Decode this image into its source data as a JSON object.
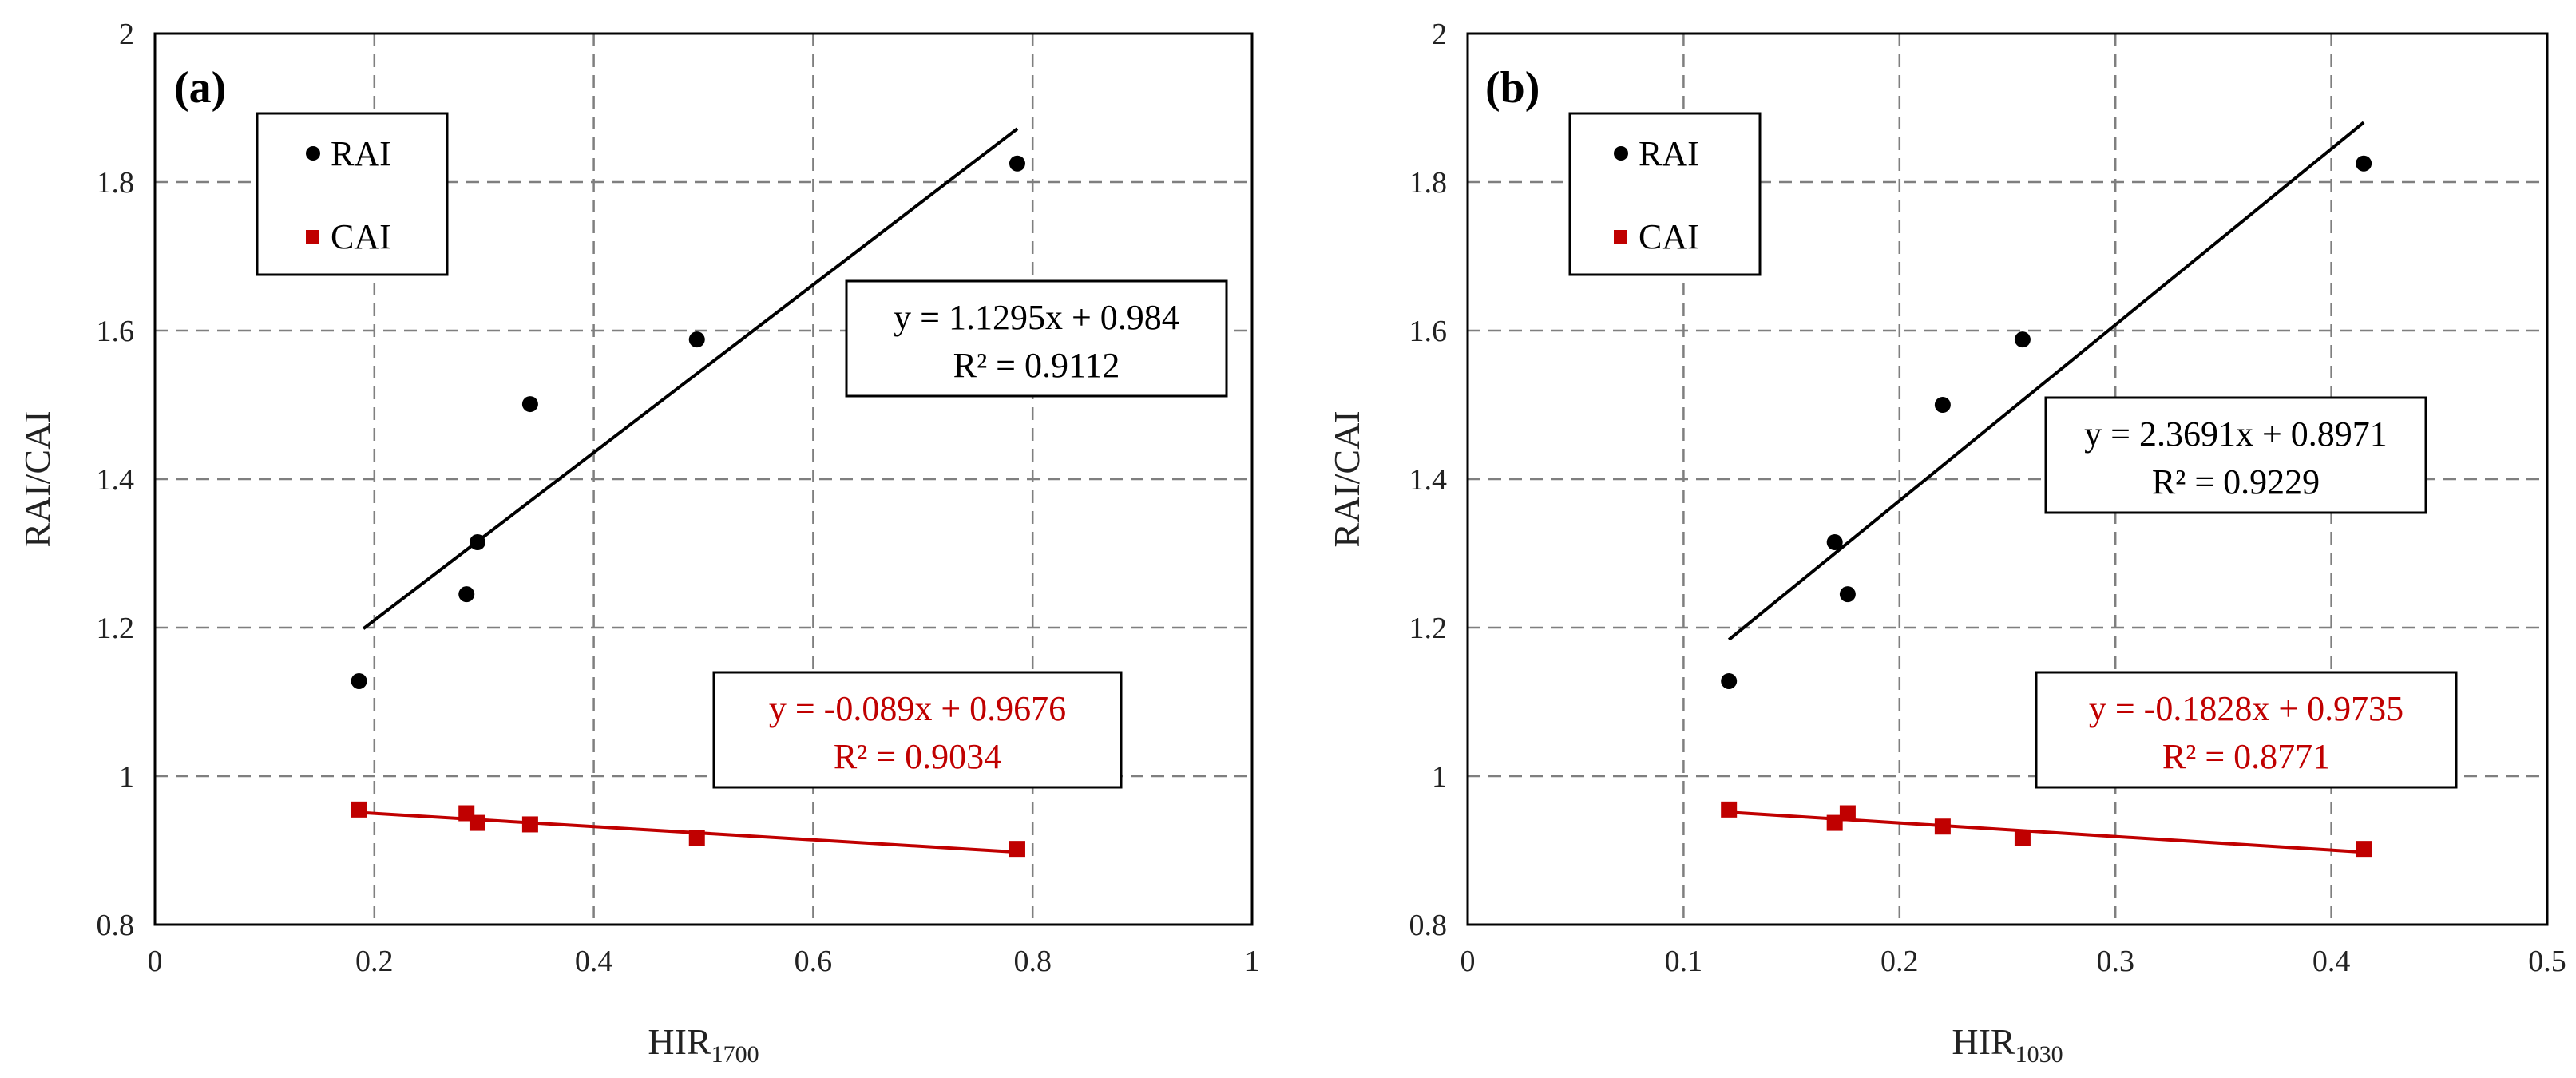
{
  "chart_data": [
    {
      "type": "scatter",
      "panel_label": "(a)",
      "xlabel": {
        "main": "HIR",
        "sub": "1700"
      },
      "ylabel": "RAI/CAI",
      "xlim": [
        0,
        1
      ],
      "ylim": [
        0.8,
        2
      ],
      "xticks": [
        "0",
        "0.2",
        "0.4",
        "0.6",
        "0.8",
        "1"
      ],
      "xtick_values": [
        0,
        0.2,
        0.4,
        0.6,
        0.8,
        1
      ],
      "yticks": [
        "0.8",
        "1",
        "1.2",
        "1.4",
        "1.6",
        "1.8",
        "2"
      ],
      "ytick_values": [
        0.8,
        1,
        1.2,
        1.4,
        1.6,
        1.8,
        2
      ],
      "grid": true,
      "legend": [
        "RAI",
        "CAI"
      ],
      "series": [
        {
          "name": "RAI",
          "marker": "circle",
          "color": "#000000",
          "x": [
            0.186,
            0.284,
            0.294,
            0.342,
            0.494,
            0.786
          ],
          "y": [
            1.128,
            1.245,
            1.315,
            1.501,
            1.588,
            1.825
          ],
          "fit": {
            "slope": 1.1295,
            "intercept": 0.984,
            "x_range": [
              0.19,
              0.786
            ]
          },
          "equation": "y = 1.1295x + 0.984",
          "r2": "R² = 0.9112"
        },
        {
          "name": "CAI",
          "marker": "square",
          "color": "#c00000",
          "x": [
            0.186,
            0.284,
            0.294,
            0.342,
            0.494,
            0.786
          ],
          "y": [
            0.955,
            0.95,
            0.937,
            0.935,
            0.917,
            0.902
          ],
          "fit": {
            "slope": -0.089,
            "intercept": 0.9676,
            "x_range": [
              0.186,
              0.786
            ]
          },
          "equation": "y = -0.089x + 0.9676",
          "r2": "R² = 0.9034"
        }
      ]
    },
    {
      "type": "scatter",
      "panel_label": "(b)",
      "xlabel": {
        "main": "HIR",
        "sub": "1030"
      },
      "ylabel": "RAI/CAI",
      "xlim": [
        0,
        0.5
      ],
      "ylim": [
        0.8,
        2
      ],
      "xticks": [
        "0",
        "0.1",
        "0.2",
        "0.3",
        "0.4",
        "0.5"
      ],
      "xtick_values": [
        0,
        0.1,
        0.2,
        0.3,
        0.4,
        0.5
      ],
      "yticks": [
        "0.8",
        "1",
        "1.2",
        "1.4",
        "1.6",
        "1.8",
        "2"
      ],
      "ytick_values": [
        0.8,
        1,
        1.2,
        1.4,
        1.6,
        1.8,
        2
      ],
      "grid": true,
      "legend": [
        "RAI",
        "CAI"
      ],
      "series": [
        {
          "name": "RAI",
          "marker": "circle",
          "color": "#000000",
          "x": [
            0.121,
            0.17,
            0.176,
            0.22,
            0.257,
            0.415
          ],
          "y": [
            1.128,
            1.315,
            1.245,
            1.5,
            1.588,
            1.825
          ],
          "fit": {
            "slope": 2.3691,
            "intercept": 0.8971,
            "x_range": [
              0.121,
              0.415
            ]
          },
          "equation": "y = 2.3691x + 0.8971",
          "r2": "R² = 0.9229"
        },
        {
          "name": "CAI",
          "marker": "square",
          "color": "#c00000",
          "x": [
            0.121,
            0.17,
            0.176,
            0.22,
            0.257,
            0.415
          ],
          "y": [
            0.955,
            0.937,
            0.95,
            0.932,
            0.917,
            0.902
          ],
          "fit": {
            "slope": -0.1828,
            "intercept": 0.9735,
            "x_range": [
              0.121,
              0.415
            ]
          },
          "equation": "y = -0.1828x + 0.9735",
          "r2": "R² = 0.8771"
        }
      ]
    }
  ]
}
